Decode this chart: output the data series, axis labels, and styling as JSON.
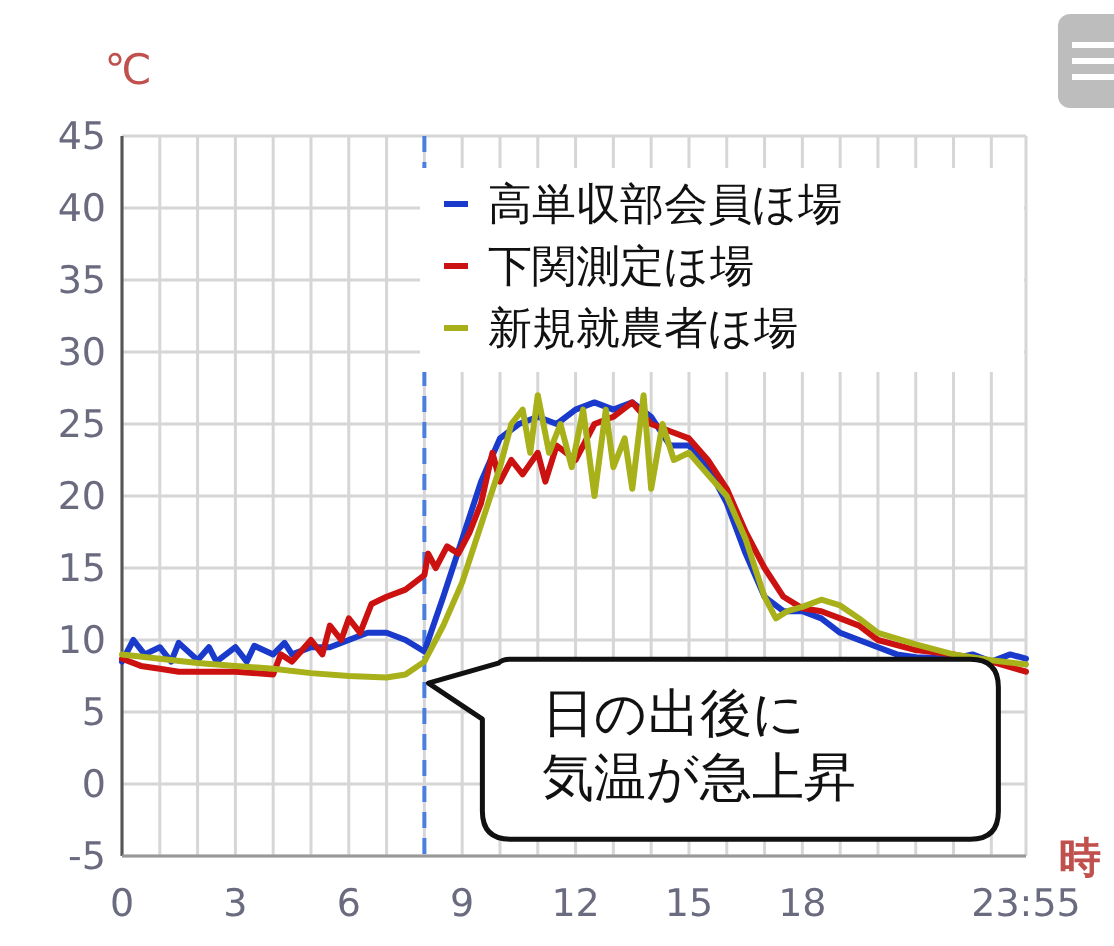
{
  "chart_data": {
    "type": "line",
    "xlabel": "時",
    "ylabel": "℃",
    "xlim": [
      0,
      23.917
    ],
    "ylim": [
      -5,
      45
    ],
    "xticks": [
      0,
      {
        "value": 1,
        "label": null
      },
      {
        "value": 2,
        "label": null
      },
      3,
      {
        "value": 4,
        "label": null
      },
      {
        "value": 5,
        "label": null
      },
      6,
      {
        "value": 7,
        "label": null
      },
      {
        "value": 8,
        "label": null
      },
      9,
      {
        "value": 10,
        "label": null
      },
      {
        "value": 11,
        "label": null
      },
      12,
      {
        "value": 13,
        "label": null
      },
      {
        "value": 14,
        "label": null
      },
      15,
      {
        "value": 16,
        "label": null
      },
      {
        "value": 17,
        "label": null
      },
      18,
      {
        "value": 19,
        "label": null
      },
      {
        "value": 20,
        "label": null
      },
      {
        "value": 21,
        "label": null
      },
      {
        "value": 22,
        "label": null
      },
      {
        "value": 23,
        "label": null
      },
      {
        "value": 23.917,
        "label": "23:55"
      }
    ],
    "yticks": [
      -5,
      0,
      5,
      10,
      15,
      20,
      25,
      30,
      35,
      40,
      45
    ],
    "grid": true,
    "legend": "top right",
    "marker": "none",
    "line_style": "solid",
    "ref_lines": [
      {
        "axis": "x",
        "value": 8,
        "color": "#4a7fe0",
        "line_style": "dashed"
      }
    ],
    "annotations": [
      {
        "text": "日の出後に",
        "x": 8,
        "y": 7
      },
      "気温が急上昇"
    ],
    "series": [
      {
        "name": "高単収部会員ほ場",
        "color": "#1a3acc",
        "x": [
          0,
          0.3,
          0.6,
          1,
          1.3,
          1.5,
          2,
          2.3,
          2.5,
          3,
          3.3,
          3.5,
          4,
          4.3,
          4.5,
          5,
          5.5,
          6,
          6.5,
          7,
          7.5,
          8,
          8.5,
          9,
          9.5,
          10,
          10.5,
          11,
          11.5,
          12,
          12.5,
          13,
          13.5,
          14,
          14.5,
          15,
          15.5,
          16,
          16.5,
          17,
          17.5,
          18,
          18.5,
          19,
          19.5,
          20,
          20.5,
          21,
          22,
          22.5,
          23,
          23.5,
          23.917
        ],
        "values": [
          8.5,
          10,
          9,
          9.5,
          8.5,
          9.8,
          8.6,
          9.5,
          8.5,
          9.5,
          8.5,
          9.6,
          9,
          9.8,
          9,
          9.5,
          9.5,
          10,
          10.5,
          10.5,
          10,
          9.2,
          13,
          17,
          21,
          24,
          25,
          25.5,
          25,
          26,
          26.5,
          26,
          26.5,
          25.5,
          23.5,
          23.5,
          22,
          19.5,
          16,
          13,
          12,
          12,
          11.5,
          10.5,
          10,
          9.5,
          9,
          8.8,
          8.7,
          9,
          8.5,
          9,
          8.7
        ]
      },
      {
        "name": "下関測定ほ場",
        "color": "#cc1111",
        "x": [
          0,
          0.5,
          1,
          1.5,
          2,
          3,
          4,
          4.2,
          4.5,
          5,
          5.3,
          5.5,
          5.8,
          6,
          6.3,
          6.6,
          7,
          7.5,
          8,
          8.1,
          8.3,
          8.6,
          8.9,
          9.2,
          9.5,
          9.8,
          10,
          10.3,
          10.6,
          11,
          11.2,
          11.5,
          12,
          12.5,
          13,
          13.5,
          14,
          14.5,
          15,
          15.5,
          16,
          16.5,
          17,
          17.5,
          18,
          18.5,
          19,
          19.5,
          20,
          21,
          22,
          23,
          23.917
        ],
        "values": [
          8.7,
          8.2,
          8,
          7.8,
          7.8,
          7.8,
          7.6,
          9,
          8.5,
          10,
          9,
          11,
          10,
          11.5,
          10.5,
          12.5,
          13,
          13.5,
          14.5,
          16,
          15,
          16.5,
          16,
          17.5,
          19.5,
          23,
          21,
          22.5,
          21.5,
          23,
          21,
          23.5,
          22.5,
          25,
          25.5,
          26.5,
          25,
          24.5,
          24,
          22.5,
          20.5,
          17.5,
          15,
          13,
          12.2,
          12,
          11.5,
          11,
          10,
          9.3,
          9,
          8.5,
          7.8
        ]
      },
      {
        "name": "新規就農者ほ場",
        "color": "#a8b01a",
        "x": [
          0,
          1,
          2,
          3,
          4,
          5,
          6,
          7,
          7.5,
          8,
          8.5,
          9,
          9.5,
          10,
          10.3,
          10.6,
          10.8,
          11,
          11.3,
          11.6,
          11.9,
          12.2,
          12.5,
          12.8,
          13,
          13.3,
          13.5,
          13.8,
          14,
          14.3,
          14.6,
          15,
          15.5,
          16,
          16.5,
          17,
          17.3,
          17.6,
          18,
          18.5,
          19,
          19.5,
          20,
          21,
          22,
          23,
          23.917
        ],
        "values": [
          9,
          8.7,
          8.4,
          8.2,
          8,
          7.7,
          7.5,
          7.4,
          7.6,
          8.5,
          11,
          14,
          18,
          22,
          25,
          26,
          23,
          27,
          23,
          25,
          22,
          26,
          20,
          26,
          22,
          24,
          20.5,
          27,
          20.5,
          25,
          22.5,
          23,
          21.5,
          20,
          17,
          13,
          11.5,
          12,
          12.3,
          12.8,
          12.4,
          11.5,
          10.5,
          9.7,
          9,
          8.6,
          8.3
        ]
      }
    ]
  }
}
